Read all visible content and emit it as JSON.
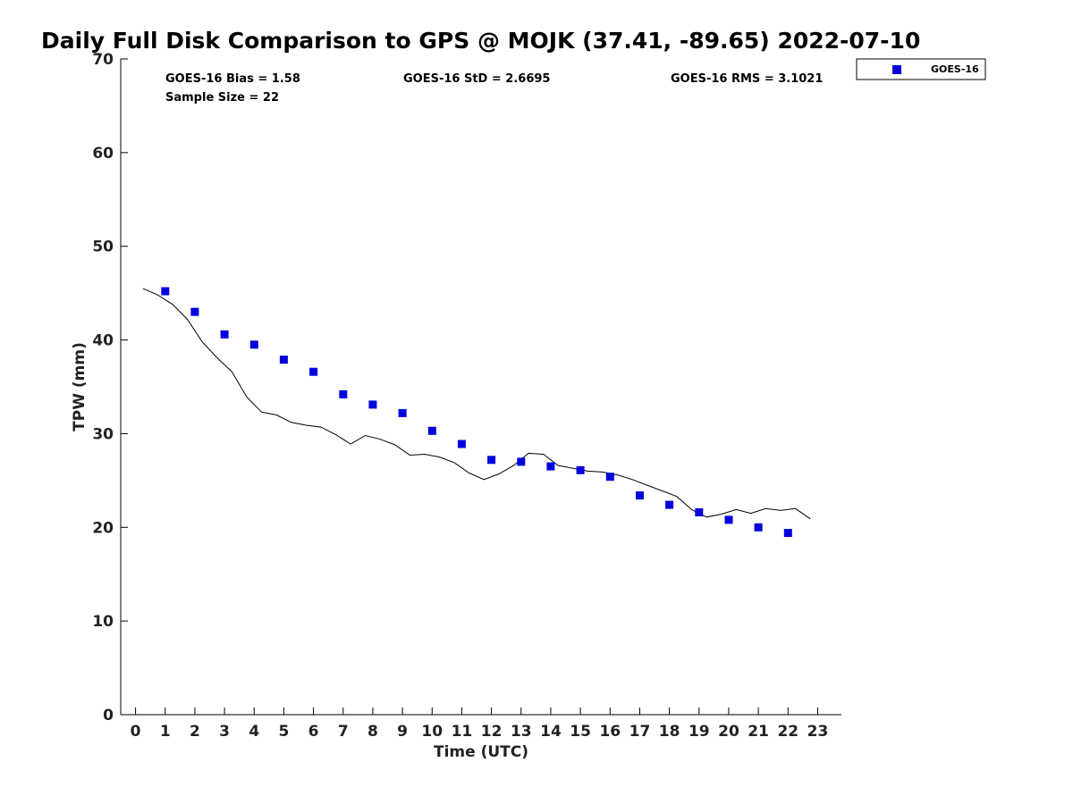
{
  "chart_data": {
    "type": "scatter",
    "title": "Daily Full Disk Comparison to GPS @ MOJK (37.41, -89.65) 2022-07-10",
    "xlabel": "Time (UTC)",
    "ylabel": "TPW (mm)",
    "xlim": [
      -0.5,
      23.8
    ],
    "ylim": [
      0,
      70
    ],
    "xticks": [
      "0",
      "1",
      "2",
      "3",
      "4",
      "5",
      "6",
      "7",
      "8",
      "9",
      "10",
      "11",
      "12",
      "13",
      "14",
      "15",
      "16",
      "17",
      "18",
      "19",
      "20",
      "21",
      "22",
      "23"
    ],
    "yticks": [
      "0",
      "10",
      "20",
      "30",
      "40",
      "50",
      "60",
      "70"
    ],
    "grid": false,
    "legend_position": "top-right",
    "stats": {
      "bias": "GOES-16 Bias = 1.58",
      "std": "GOES-16 StD = 2.6695",
      "rms": "GOES-16 RMS = 3.1021",
      "sample": "Sample Size = 22"
    },
    "series": [
      {
        "name": "GOES-16",
        "kind": "scatter",
        "color": "#0000dd",
        "x": [
          1,
          2,
          3,
          4,
          5,
          6,
          7,
          8,
          9,
          10,
          11,
          12,
          13,
          14,
          15,
          16,
          17,
          18,
          19,
          20,
          21,
          22
        ],
        "y": [
          45.2,
          43.0,
          40.6,
          39.5,
          37.9,
          36.6,
          34.2,
          33.1,
          32.2,
          30.3,
          28.9,
          27.2,
          27.0,
          26.5,
          26.1,
          25.4,
          23.4,
          22.4,
          21.6,
          20.8,
          20.0,
          19.4
        ]
      },
      {
        "kind": "line",
        "color": "#000000",
        "x": [
          0.25,
          0.75,
          1.25,
          1.75,
          2.25,
          2.75,
          3.25,
          3.75,
          4.25,
          4.75,
          5.25,
          5.75,
          6.25,
          6.75,
          7.25,
          7.75,
          8.25,
          8.75,
          9.25,
          9.75,
          10.25,
          10.75,
          11.25,
          11.75,
          12.25,
          12.75,
          13.25,
          13.75,
          14.25,
          14.75,
          15.25,
          15.75,
          16.25,
          16.75,
          17.25,
          17.75,
          18.25,
          18.75,
          19.25,
          19.75,
          20.25,
          20.75,
          21.25,
          21.75,
          22.25,
          22.75
        ],
        "y": [
          45.5,
          44.8,
          43.8,
          42.2,
          39.8,
          38.1,
          36.6,
          33.9,
          32.3,
          32.0,
          31.2,
          30.9,
          30.7,
          29.9,
          28.9,
          29.8,
          29.4,
          28.8,
          27.7,
          27.8,
          27.5,
          26.9,
          25.8,
          25.1,
          25.7,
          26.6,
          27.9,
          27.8,
          26.6,
          26.3,
          26.0,
          25.9,
          25.6,
          25.1,
          24.5,
          23.9,
          23.3,
          21.9,
          21.1,
          21.4,
          21.9,
          21.5,
          22.0,
          21.8,
          22.0,
          20.9
        ]
      }
    ]
  }
}
